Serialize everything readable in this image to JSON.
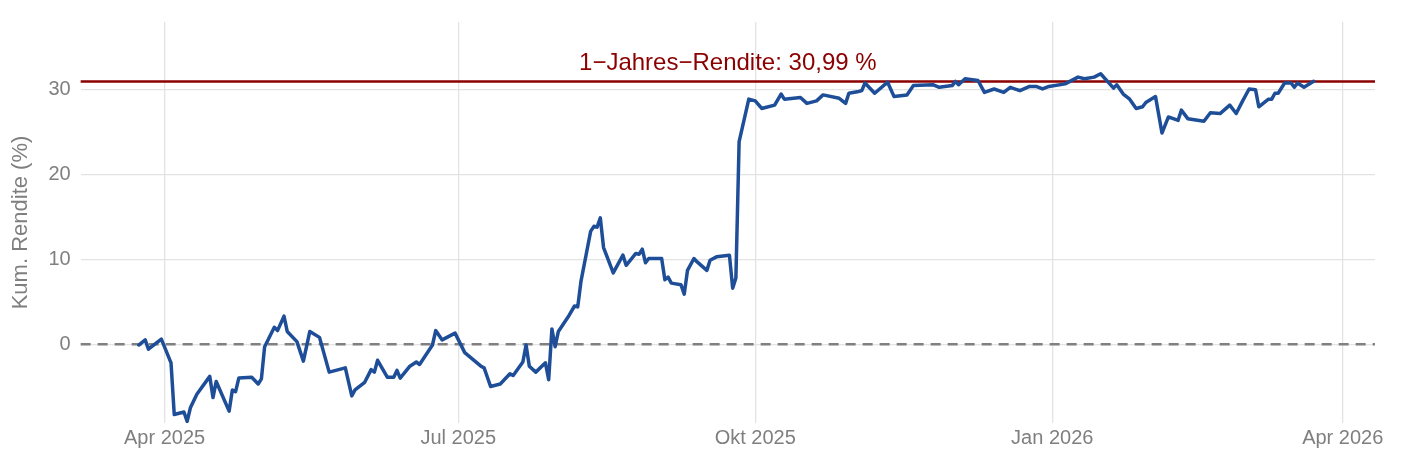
{
  "chart_data": {
    "type": "line",
    "ylabel": "Kum. Rendite (%)",
    "xlim": [
      "2025-03-06",
      "2026-04-11"
    ],
    "xticks": [
      {
        "value": "2025-04-01",
        "label": "Apr 2025"
      },
      {
        "value": "2025-07-01",
        "label": "Jul 2025"
      },
      {
        "value": "2025-10-01",
        "label": "Okt 2025"
      },
      {
        "value": "2026-01-01",
        "label": "Jan 2026"
      },
      {
        "value": "2026-04-01",
        "label": "Apr 2026"
      }
    ],
    "ylim": [
      -9.3,
      38
    ],
    "yticks": [
      0,
      10,
      20,
      30
    ],
    "grid": true,
    "legend": false,
    "marker": "none",
    "line_style": "solid",
    "ref_lines": [
      {
        "axis": "y",
        "value": 0,
        "color": "#808080",
        "line_style": "dashed"
      },
      {
        "axis": "y",
        "value": 30.99,
        "label": "1−Jahres−Rendite: 30,99 %",
        "color": "#8b0000",
        "line_style": "solid"
      }
    ],
    "series": [
      {
        "color": "#1f4e98",
        "x": [
          "2025-03-24",
          "2025-03-26",
          "2025-03-27",
          "2025-03-31",
          "2025-04-03",
          "2025-04-04",
          "2025-04-07",
          "2025-04-08",
          "2025-04-09",
          "2025-04-11",
          "2025-04-15",
          "2025-04-16",
          "2025-04-17",
          "2025-04-21",
          "2025-04-22",
          "2025-04-23",
          "2025-04-24",
          "2025-04-28",
          "2025-04-30",
          "2025-05-01",
          "2025-05-02",
          "2025-05-05",
          "2025-05-06",
          "2025-05-08",
          "2025-05-09",
          "2025-05-12",
          "2025-05-14",
          "2025-05-16",
          "2025-05-19",
          "2025-05-22",
          "2025-05-27",
          "2025-05-29",
          "2025-05-30",
          "2025-06-02",
          "2025-06-04",
          "2025-06-05",
          "2025-06-06",
          "2025-06-09",
          "2025-06-11",
          "2025-06-12",
          "2025-06-13",
          "2025-06-16",
          "2025-06-18",
          "2025-06-19",
          "2025-06-23",
          "2025-06-24",
          "2025-06-26",
          "2025-06-30",
          "2025-07-03",
          "2025-07-08",
          "2025-07-09",
          "2025-07-11",
          "2025-07-14",
          "2025-07-17",
          "2025-07-18",
          "2025-07-21",
          "2025-07-22",
          "2025-07-23",
          "2025-07-25",
          "2025-07-28",
          "2025-07-29",
          "2025-07-30",
          "2025-07-31",
          "2025-08-01",
          "2025-08-04",
          "2025-08-06",
          "2025-08-07",
          "2025-08-08",
          "2025-08-11",
          "2025-08-12",
          "2025-08-13",
          "2025-08-14",
          "2025-08-15",
          "2025-08-18",
          "2025-08-21",
          "2025-08-22",
          "2025-08-25",
          "2025-08-26",
          "2025-08-27",
          "2025-08-28",
          "2025-08-29",
          "2025-09-02",
          "2025-09-03",
          "2025-09-04",
          "2025-09-05",
          "2025-09-08",
          "2025-09-09",
          "2025-09-10",
          "2025-09-12",
          "2025-09-13",
          "2025-09-16",
          "2025-09-17",
          "2025-09-19",
          "2025-09-23",
          "2025-09-24",
          "2025-09-25",
          "2025-09-26",
          "2025-09-29",
          "2025-10-01",
          "2025-10-03",
          "2025-10-07",
          "2025-10-09",
          "2025-10-10",
          "2025-10-15",
          "2025-10-17",
          "2025-10-20",
          "2025-10-22",
          "2025-10-27",
          "2025-10-29",
          "2025-10-30",
          "2025-11-02",
          "2025-11-03",
          "2025-11-04",
          "2025-11-07",
          "2025-11-11",
          "2025-11-13",
          "2025-11-17",
          "2025-11-19",
          "2025-11-25",
          "2025-11-27",
          "2025-12-01",
          "2025-12-02",
          "2025-12-03",
          "2025-12-05",
          "2025-12-09",
          "2025-12-11",
          "2025-12-14",
          "2025-12-17",
          "2025-12-19",
          "2025-12-22",
          "2025-12-25",
          "2025-12-27",
          "2025-12-29",
          "2025-12-31",
          "2026-01-05",
          "2026-01-09",
          "2026-01-11",
          "2026-01-14",
          "2026-01-16",
          "2026-01-20",
          "2026-01-21",
          "2026-01-23",
          "2026-01-25",
          "2026-01-27",
          "2026-01-29",
          "2026-01-30",
          "2026-02-02",
          "2026-02-04",
          "2026-02-06",
          "2026-02-09",
          "2026-02-10",
          "2026-02-12",
          "2026-02-17",
          "2026-02-19",
          "2026-02-22",
          "2026-02-25",
          "2026-02-27",
          "2026-03-01",
          "2026-03-03",
          "2026-03-05",
          "2026-03-06",
          "2026-03-09",
          "2026-03-10",
          "2026-03-11",
          "2026-03-12",
          "2026-03-14",
          "2026-03-16",
          "2026-03-17",
          "2026-03-18",
          "2026-03-20",
          "2026-03-23"
        ],
        "values": [
          -0.1,
          0.5,
          -0.6,
          0.6,
          -2.2,
          -8.3,
          -8.0,
          -9.1,
          -7.5,
          -5.9,
          -3.8,
          -6.3,
          -4.4,
          -7.9,
          -5.4,
          -5.6,
          -4.0,
          -3.9,
          -4.7,
          -4.1,
          -0.3,
          2.0,
          1.6,
          3.3,
          1.5,
          0.3,
          -2.0,
          1.5,
          0.8,
          -3.3,
          -2.8,
          -6.1,
          -5.4,
          -4.5,
          -3.0,
          -3.3,
          -1.9,
          -3.9,
          -3.9,
          -3.1,
          -4.0,
          -2.6,
          -2.1,
          -2.4,
          -0.1,
          1.6,
          0.5,
          1.3,
          -1.0,
          -2.6,
          -2.8,
          -5.0,
          -4.7,
          -3.5,
          -3.7,
          -2.1,
          -0.1,
          -2.6,
          -3.3,
          -2.2,
          -4.2,
          1.8,
          -0.3,
          1.5,
          3.2,
          4.5,
          4.4,
          7.4,
          13.3,
          13.9,
          13.8,
          14.9,
          11.4,
          8.4,
          10.5,
          9.3,
          10.7,
          10.6,
          11.2,
          9.6,
          10.1,
          10.1,
          7.6,
          7.9,
          7.2,
          7.0,
          5.9,
          8.7,
          10.1,
          9.7,
          8.7,
          9.9,
          10.3,
          10.5,
          6.6,
          7.8,
          23.9,
          28.9,
          28.7,
          27.8,
          28.2,
          29.5,
          28.9,
          29.1,
          28.4,
          28.7,
          29.4,
          29.0,
          28.4,
          29.6,
          29.8,
          29.9,
          30.8,
          29.6,
          30.9,
          29.2,
          29.4,
          30.5,
          30.6,
          30.3,
          30.5,
          31.0,
          30.6,
          31.3,
          31.1,
          29.7,
          30.1,
          29.7,
          30.3,
          29.9,
          30.4,
          30.4,
          30.1,
          30.4,
          30.7,
          31.5,
          31.3,
          31.5,
          31.9,
          30.2,
          30.6,
          29.5,
          28.9,
          27.8,
          28.0,
          28.5,
          29.2,
          24.9,
          26.8,
          26.4,
          27.6,
          26.6,
          26.3,
          27.3,
          27.2,
          28.2,
          27.2,
          28.7,
          30.1,
          30.0,
          28.0,
          28.9,
          28.9,
          29.6,
          29.6,
          30.8,
          30.8,
          30.3,
          30.8,
          30.3,
          31.0
        ]
      }
    ]
  }
}
